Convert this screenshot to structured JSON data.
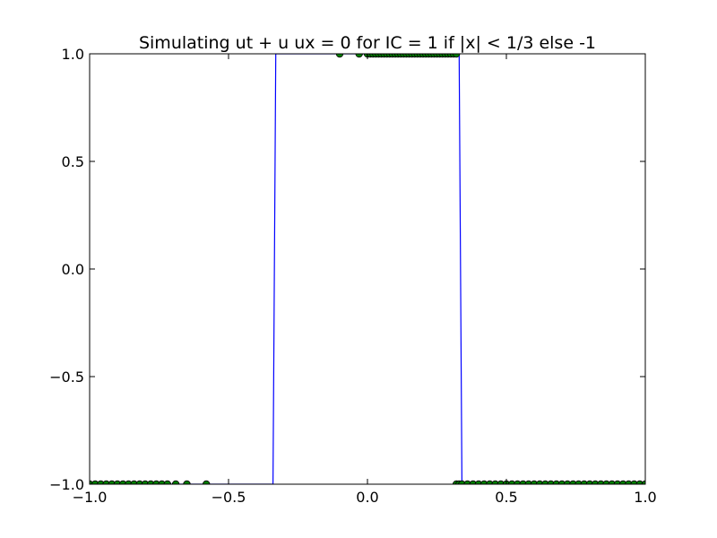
{
  "chart_data": {
    "type": "line",
    "title": "Simulating ut + u ux = 0 for IC = 1 if |x| < 1/3 else -1",
    "xlabel": "",
    "ylabel": "",
    "xlim": [
      -1.0,
      1.0
    ],
    "ylim": [
      -1.0,
      1.0
    ],
    "grid": false,
    "xticks": [
      -1.0,
      -0.5,
      0.0,
      0.5,
      1.0
    ],
    "xtick_labels": [
      "−1.0",
      "−0.5",
      "0.0",
      "0.5",
      "1.0"
    ],
    "yticks": [
      -1.0,
      -0.5,
      0.0,
      0.5,
      1.0
    ],
    "ytick_labels": [
      "−1.0",
      "−0.5",
      "0.0",
      "0.5",
      "1.0"
    ],
    "series": [
      {
        "kind": "line",
        "color": "#0000ff",
        "x": [
          -1.0,
          -0.34,
          -0.33,
          0.33,
          0.34,
          1.0
        ],
        "y": [
          -1.0,
          -1.0,
          1.0,
          1.0,
          -1.0,
          -1.0
        ]
      },
      {
        "kind": "scatter",
        "color": "#008000",
        "x": [
          -1.0,
          -0.98,
          -0.96,
          -0.94,
          -0.92,
          -0.9,
          -0.88,
          -0.86,
          -0.84,
          -0.82,
          -0.8,
          -0.78,
          -0.76,
          -0.74,
          -0.72,
          -0.69,
          -0.65,
          -0.58,
          -0.1,
          -0.03,
          0.0,
          0.01,
          0.02,
          0.03,
          0.04,
          0.05,
          0.06,
          0.07,
          0.08,
          0.09,
          0.1,
          0.11,
          0.12,
          0.13,
          0.14,
          0.15,
          0.16,
          0.17,
          0.18,
          0.19,
          0.2,
          0.21,
          0.22,
          0.23,
          0.24,
          0.25,
          0.26,
          0.27,
          0.28,
          0.29,
          0.3,
          0.31,
          0.32,
          0.32,
          0.33,
          0.34,
          0.36,
          0.38,
          0.4,
          0.42,
          0.44,
          0.46,
          0.48,
          0.5,
          0.52,
          0.54,
          0.56,
          0.58,
          0.6,
          0.62,
          0.64,
          0.66,
          0.68,
          0.7,
          0.72,
          0.74,
          0.76,
          0.78,
          0.8,
          0.82,
          0.84,
          0.86,
          0.88,
          0.9,
          0.92,
          0.94,
          0.96,
          0.98,
          1.0
        ],
        "y": [
          -1,
          -1,
          -1,
          -1,
          -1,
          -1,
          -1,
          -1,
          -1,
          -1,
          -1,
          -1,
          -1,
          -1,
          -1,
          -1,
          -1,
          -1,
          1,
          1,
          1,
          1,
          1,
          1,
          1,
          1,
          1,
          1,
          1,
          1,
          1,
          1,
          1,
          1,
          1,
          1,
          1,
          1,
          1,
          1,
          1,
          1,
          1,
          1,
          1,
          1,
          1,
          1,
          1,
          1,
          1,
          1,
          1,
          -1,
          -1,
          -1,
          -1,
          -1,
          -1,
          -1,
          -1,
          -1,
          -1,
          -1,
          -1,
          -1,
          -1,
          -1,
          -1,
          -1,
          -1,
          -1,
          -1,
          -1,
          -1,
          -1,
          -1,
          -1,
          -1,
          -1,
          -1,
          -1,
          -1,
          -1,
          -1,
          -1,
          -1,
          -1,
          -1
        ]
      }
    ]
  }
}
